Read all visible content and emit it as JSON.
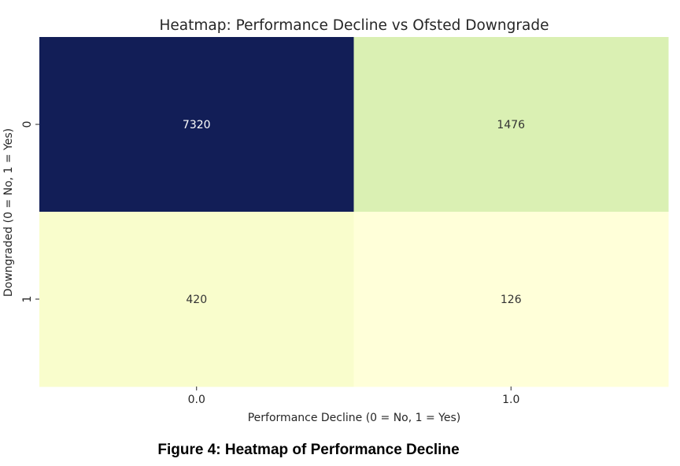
{
  "chart_data": {
    "type": "heatmap",
    "title": "Heatmap: Performance Decline vs Ofsted Downgrade",
    "xlabel": "Performance Decline (0 = No, 1 = Yes)",
    "ylabel": "Downgraded (0 = No, 1 = Yes)",
    "x_categories": [
      "0.0",
      "1.0"
    ],
    "y_categories": [
      "0",
      "1"
    ],
    "values": [
      [
        7320,
        1476
      ],
      [
        420,
        126
      ]
    ],
    "annotations": true,
    "colormap": "YlGnBu",
    "colorbar": false,
    "grid": false
  },
  "caption": "Figure 4: Heatmap of Performance Decline",
  "colors": {
    "high": "#121e57",
    "low": "#fffed8",
    "text_dark_cell": "#ffffff",
    "text_light_cell": "#333333"
  }
}
